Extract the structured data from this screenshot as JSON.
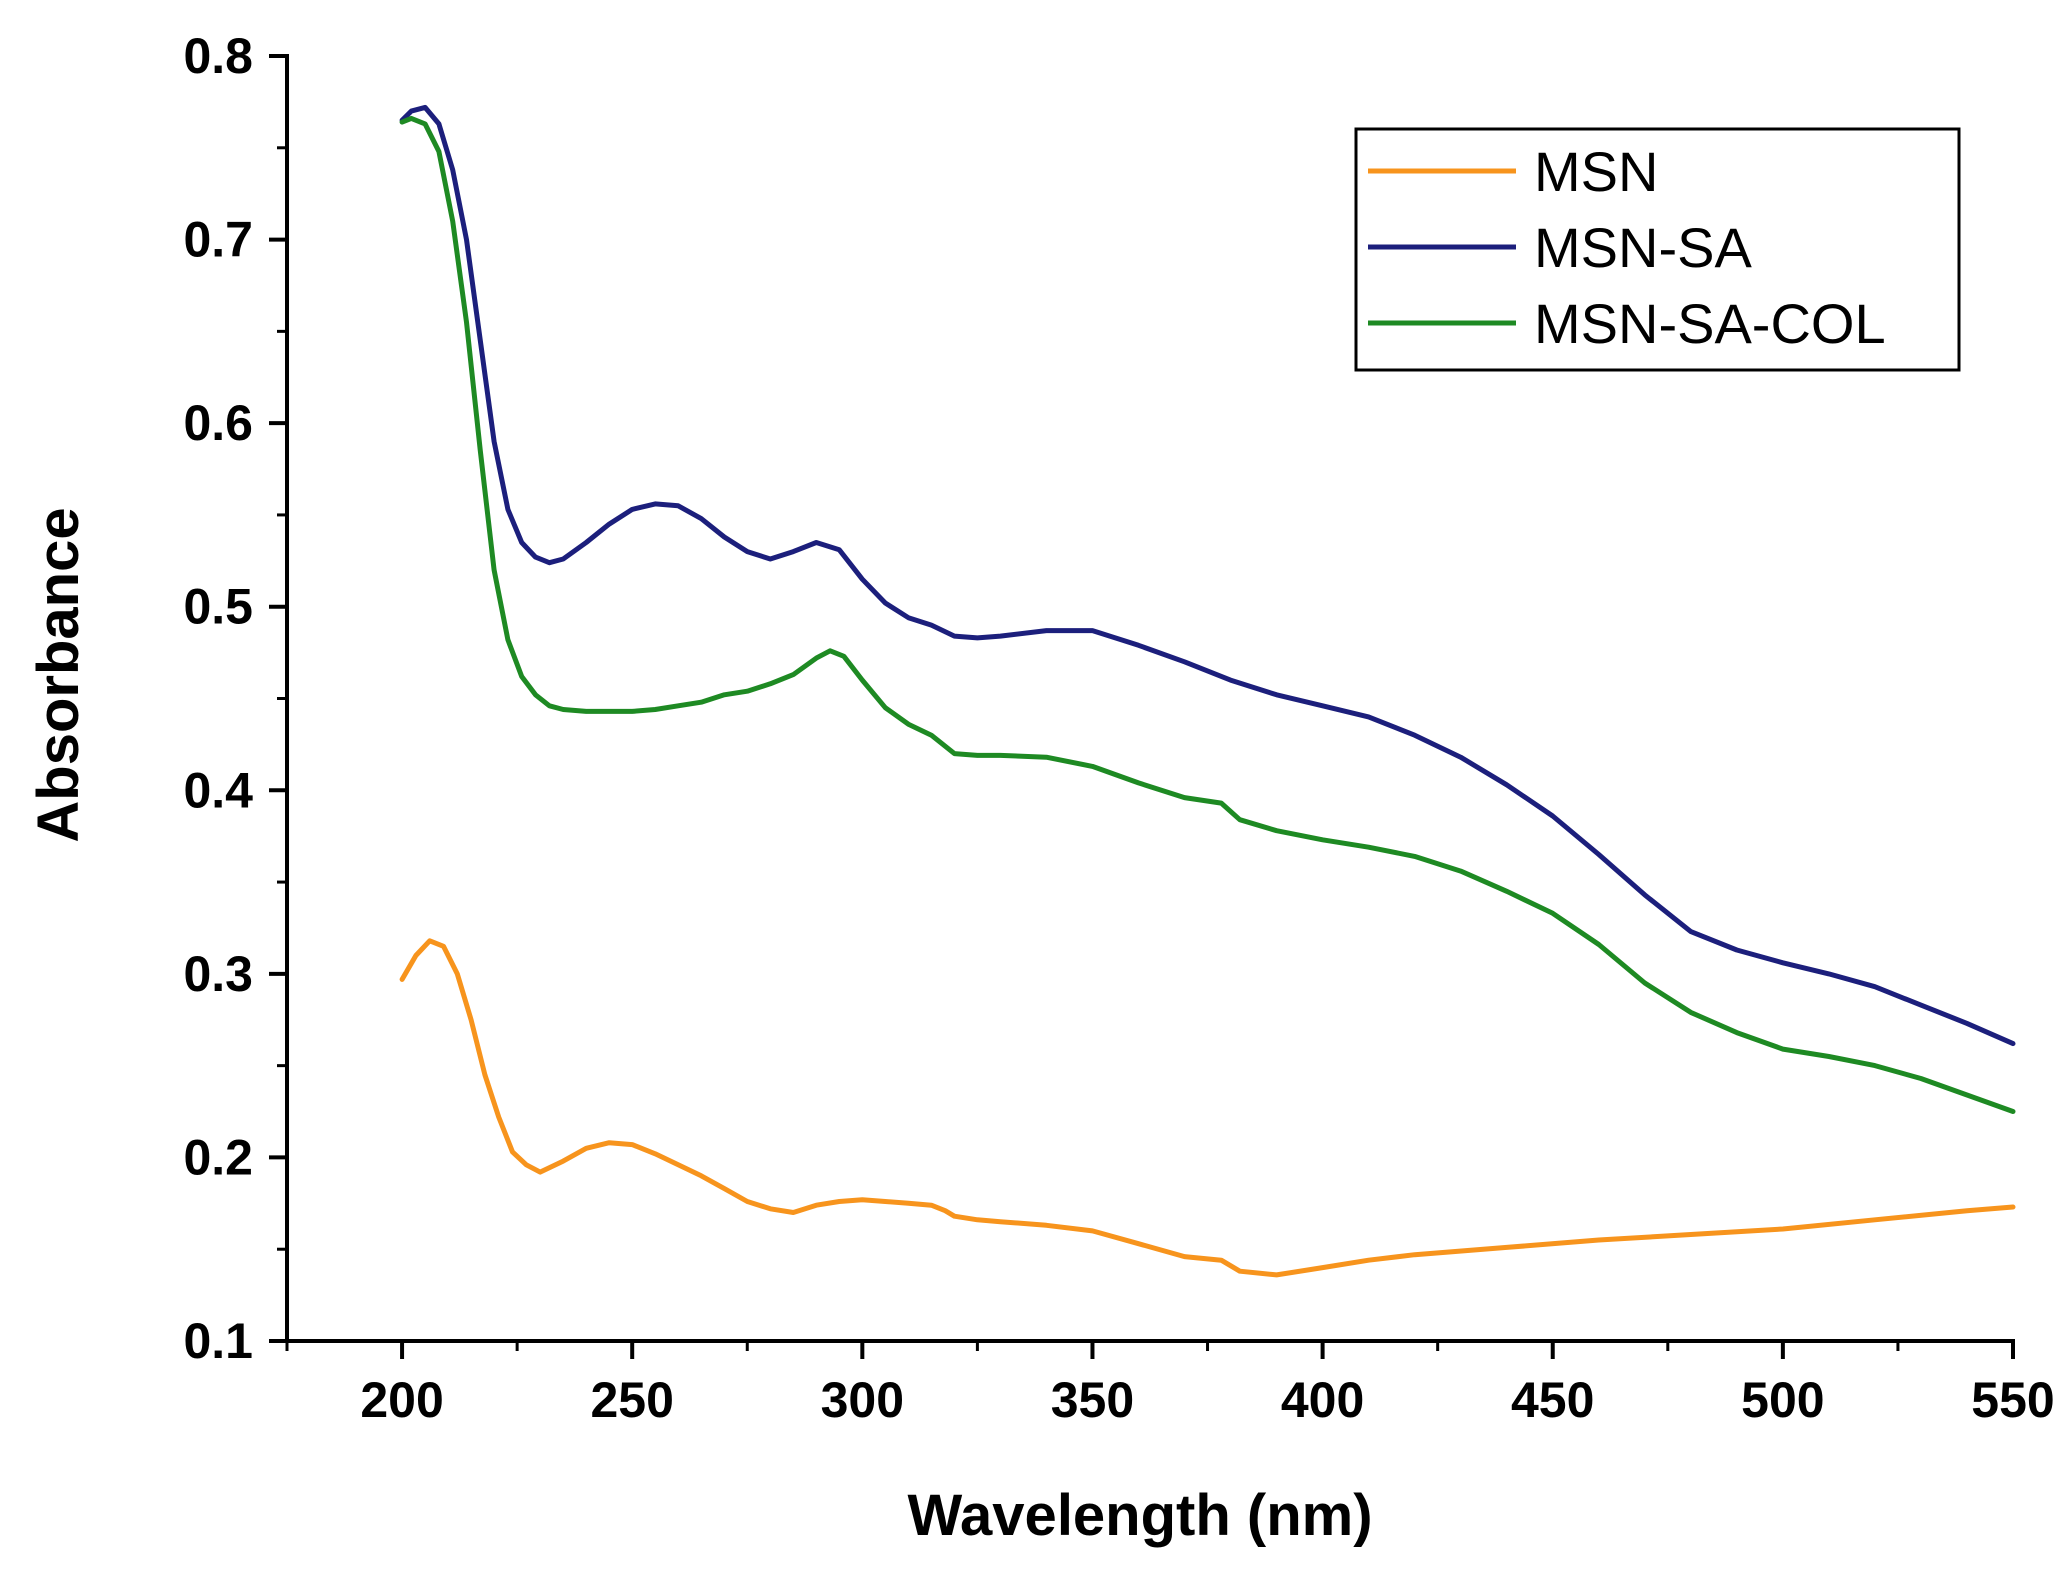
{
  "chart_data": {
    "type": "line",
    "title": "",
    "xlabel": "Wavelength (nm)",
    "ylabel": "Absorbance",
    "xlim": [
      175,
      550
    ],
    "ylim": [
      0.1,
      0.8
    ],
    "x_ticks": [
      200,
      250,
      300,
      350,
      400,
      450,
      500,
      550
    ],
    "x_tick_labels": [
      "200",
      "250",
      "300",
      "350",
      "400",
      "450",
      "500",
      "550"
    ],
    "y_ticks": [
      0.1,
      0.2,
      0.3,
      0.4,
      0.5,
      0.6,
      0.7,
      0.8
    ],
    "y_tick_labels": [
      "0.1",
      "0.2",
      "0.3",
      "0.4",
      "0.5",
      "0.6",
      "0.7",
      "0.8"
    ],
    "grid": false,
    "legend_position": "top-right",
    "series": [
      {
        "name": "MSN",
        "color": "#F7941D",
        "x": [
          200,
          203,
          206,
          209,
          212,
          215,
          218,
          221,
          224,
          227,
          230,
          235,
          240,
          245,
          250,
          255,
          260,
          265,
          270,
          275,
          280,
          285,
          290,
          295,
          300,
          305,
          310,
          315,
          318,
          320,
          325,
          330,
          340,
          350,
          360,
          370,
          378,
          382,
          390,
          400,
          410,
          420,
          440,
          460,
          480,
          500,
          520,
          540,
          550
        ],
        "y": [
          0.297,
          0.31,
          0.318,
          0.315,
          0.3,
          0.275,
          0.245,
          0.222,
          0.203,
          0.196,
          0.192,
          0.198,
          0.205,
          0.208,
          0.207,
          0.202,
          0.196,
          0.19,
          0.183,
          0.176,
          0.172,
          0.17,
          0.174,
          0.176,
          0.177,
          0.176,
          0.175,
          0.174,
          0.171,
          0.168,
          0.166,
          0.165,
          0.163,
          0.16,
          0.153,
          0.146,
          0.144,
          0.138,
          0.136,
          0.14,
          0.144,
          0.147,
          0.151,
          0.155,
          0.158,
          0.161,
          0.166,
          0.171,
          0.173
        ]
      },
      {
        "name": "MSN-SA",
        "color": "#1C1F7C",
        "x": [
          200,
          202,
          205,
          208,
          211,
          214,
          217,
          220,
          223,
          226,
          229,
          232,
          235,
          240,
          245,
          250,
          255,
          260,
          265,
          270,
          275,
          280,
          285,
          290,
          295,
          300,
          305,
          310,
          315,
          320,
          325,
          330,
          340,
          350,
          360,
          370,
          380,
          390,
          400,
          410,
          420,
          430,
          440,
          450,
          460,
          470,
          480,
          490,
          500,
          510,
          520,
          530,
          540,
          550
        ],
        "y": [
          0.765,
          0.77,
          0.772,
          0.763,
          0.738,
          0.7,
          0.645,
          0.59,
          0.553,
          0.535,
          0.527,
          0.524,
          0.526,
          0.535,
          0.545,
          0.553,
          0.556,
          0.555,
          0.548,
          0.538,
          0.53,
          0.526,
          0.53,
          0.535,
          0.531,
          0.515,
          0.502,
          0.494,
          0.49,
          0.484,
          0.483,
          0.484,
          0.487,
          0.487,
          0.479,
          0.47,
          0.46,
          0.452,
          0.446,
          0.44,
          0.43,
          0.418,
          0.403,
          0.386,
          0.365,
          0.343,
          0.323,
          0.313,
          0.306,
          0.3,
          0.293,
          0.283,
          0.273,
          0.262
        ]
      },
      {
        "name": "MSN-SA-COL",
        "color": "#1E8A23",
        "x": [
          200,
          202,
          205,
          208,
          211,
          214,
          217,
          220,
          223,
          226,
          229,
          232,
          235,
          240,
          245,
          250,
          255,
          260,
          265,
          270,
          275,
          280,
          285,
          290,
          293,
          296,
          300,
          305,
          310,
          315,
          320,
          325,
          330,
          340,
          350,
          360,
          370,
          378,
          382,
          390,
          400,
          410,
          420,
          430,
          440,
          450,
          460,
          470,
          480,
          490,
          500,
          510,
          520,
          530,
          540,
          550
        ],
        "y": [
          0.764,
          0.766,
          0.763,
          0.748,
          0.71,
          0.655,
          0.585,
          0.52,
          0.482,
          0.462,
          0.452,
          0.446,
          0.444,
          0.443,
          0.443,
          0.443,
          0.444,
          0.446,
          0.448,
          0.452,
          0.454,
          0.458,
          0.463,
          0.472,
          0.476,
          0.473,
          0.46,
          0.445,
          0.436,
          0.43,
          0.42,
          0.419,
          0.419,
          0.418,
          0.413,
          0.404,
          0.396,
          0.393,
          0.384,
          0.378,
          0.373,
          0.369,
          0.364,
          0.356,
          0.345,
          0.333,
          0.316,
          0.295,
          0.279,
          0.268,
          0.259,
          0.255,
          0.25,
          0.243,
          0.234,
          0.225
        ]
      }
    ]
  }
}
